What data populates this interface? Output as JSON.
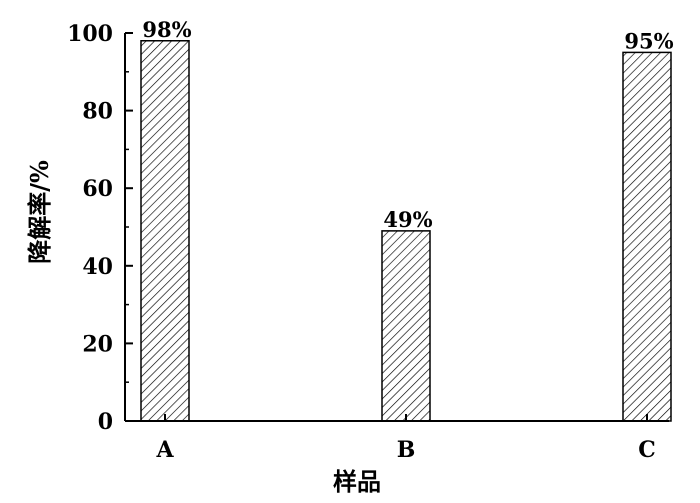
{
  "chart_data": {
    "type": "bar",
    "categories": [
      "A",
      "B",
      "C"
    ],
    "values": [
      98,
      49,
      95
    ],
    "data_labels": [
      "98%",
      "49%",
      "95%"
    ],
    "xlabel": "样品",
    "ylabel": "降解率/%",
    "ylim": [
      0,
      100
    ],
    "yticks": [
      0,
      20,
      40,
      60,
      80,
      100
    ],
    "ytick_labels": [
      "0",
      "20",
      "40",
      "60",
      "80",
      "100"
    ],
    "grid": false,
    "legend": "none",
    "bar_fill": "diagonal-hatch",
    "colors": {
      "bar_stroke": "#000000",
      "hatch": "#000000",
      "background": "#ffffff"
    }
  }
}
